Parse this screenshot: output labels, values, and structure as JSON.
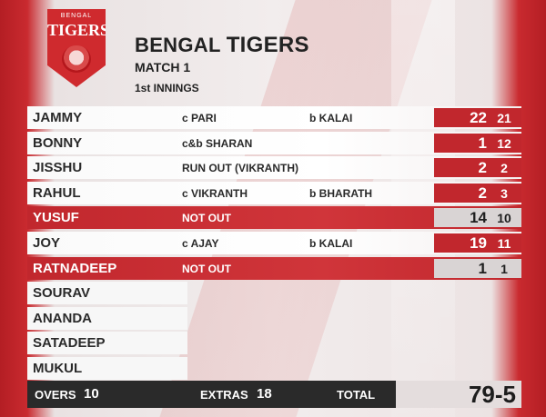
{
  "logo": {
    "small_text": "BENGAL",
    "main_text": "TIGERS"
  },
  "header": {
    "team_first": "BENGAL",
    "team_second": "TIGERS",
    "match": "MATCH 1",
    "innings": "1st INNINGS"
  },
  "batting": [
    {
      "name": "JAMMY",
      "dismissal": "c PARI",
      "bowler": "b KALAI",
      "runs": "22",
      "balls": "21",
      "status": "out"
    },
    {
      "name": "BONNY",
      "dismissal": "c&b SHARAN",
      "bowler": "",
      "runs": "1",
      "balls": "12",
      "status": "out"
    },
    {
      "name": "JISSHU",
      "dismissal": "RUN OUT (VIKRANTH)",
      "bowler": "",
      "runs": "2",
      "balls": "2",
      "status": "out"
    },
    {
      "name": "RAHUL",
      "dismissal": "c VIKRANTH",
      "bowler": "b BHARATH",
      "runs": "2",
      "balls": "3",
      "status": "out"
    },
    {
      "name": "YUSUF",
      "dismissal": "NOT OUT",
      "bowler": "",
      "runs": "14",
      "balls": "10",
      "status": "not_out"
    },
    {
      "name": "JOY",
      "dismissal": "c AJAY",
      "bowler": "b KALAI",
      "runs": "19",
      "balls": "11",
      "status": "out"
    },
    {
      "name": "RATNADEEP",
      "dismissal": "NOT OUT",
      "bowler": "",
      "runs": "1",
      "balls": "1",
      "status": "not_out"
    }
  ],
  "did_not_bat": [
    "SOURAV",
    "ANANDA",
    "SATADEEP",
    "MUKUL"
  ],
  "footer": {
    "overs_label": "OVERS",
    "overs_value": "10",
    "extras_label": "EXTRAS",
    "extras_value": "18",
    "total_label": "TOTAL",
    "total_value": "79-5"
  },
  "colors": {
    "accent_red": "#c1272d",
    "footer_dark": "#2a2a2a",
    "not_out_box": "#d9d4d4"
  }
}
